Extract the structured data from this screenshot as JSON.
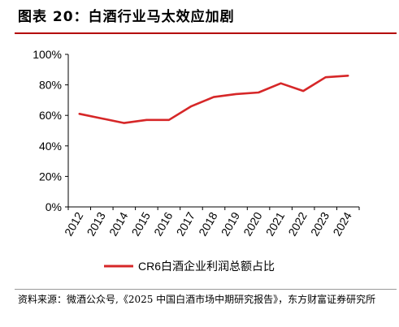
{
  "figure": {
    "title": "图表 20：白酒行业马太效应加剧",
    "source": "资料来源：微酒公众号,《2025 中国白酒市场中期研究报告》，东方财富证券研究所"
  },
  "chart_data": {
    "type": "line",
    "title": "",
    "xlabel": "",
    "ylabel": "",
    "categories": [
      "2012",
      "2013",
      "2014",
      "2015",
      "2016",
      "2017",
      "2018",
      "2019",
      "2020",
      "2021",
      "2022",
      "2023",
      "2024"
    ],
    "series": [
      {
        "name": "CR6白酒企业利润总额占比",
        "color": "#d62728",
        "values": [
          61,
          58,
          55,
          57,
          57,
          66,
          72,
          74,
          75,
          81,
          76,
          85,
          86
        ]
      }
    ],
    "ylim": [
      0,
      100
    ],
    "yticks": [
      "0%",
      "20%",
      "40%",
      "60%",
      "80%",
      "100%"
    ],
    "grid": false,
    "legend": "bottom"
  }
}
